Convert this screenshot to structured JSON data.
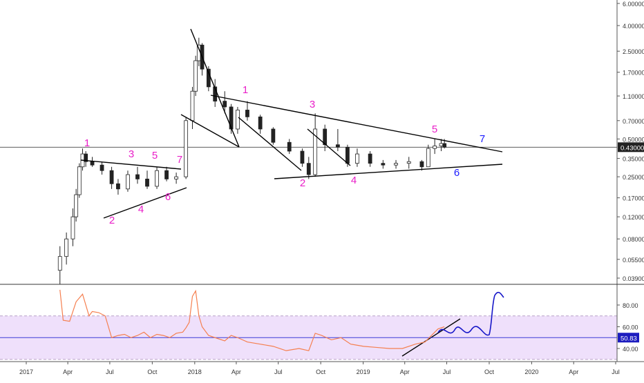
{
  "chart_data": [
    {
      "type": "candlestick",
      "title": "",
      "price_scale": "log",
      "y_ticks": [
        "6.00000",
        "4.00000",
        "2.50000",
        "1.70000",
        "1.10000",
        "0.70000",
        "0.50000",
        "0.35000",
        "0.25000",
        "0.17000",
        "0.12000",
        "0.08000",
        "0.05500",
        "0.03900"
      ],
      "y_tick_values": [
        6.0,
        4.0,
        2.5,
        1.7,
        1.1,
        0.7,
        0.5,
        0.35,
        0.25,
        0.17,
        0.12,
        0.08,
        0.055,
        0.039
      ],
      "x_ticks": [
        "2017",
        "Apr",
        "Jul",
        "Oct",
        "2018",
        "Apr",
        "Jul",
        "Oct",
        "2019",
        "Apr",
        "Jul",
        "Oct",
        "2020",
        "Apr",
        "Jul"
      ],
      "x_tick_dates": [
        "2017-01-01",
        "2017-04-01",
        "2017-07-01",
        "2017-10-01",
        "2018-01-01",
        "2018-04-01",
        "2018-07-01",
        "2018-10-01",
        "2019-01-01",
        "2019-04-01",
        "2019-07-01",
        "2019-10-01",
        "2020-01-01",
        "2020-04-01",
        "2020-07-01"
      ],
      "current_price": 0.43,
      "current_price_label": "0.43000",
      "candles_approx": [
        [
          "2017-03-15",
          0.045,
          0.07,
          0.035,
          0.058
        ],
        [
          "2017-03-29",
          0.058,
          0.09,
          0.05,
          0.08
        ],
        [
          "2017-04-12",
          0.08,
          0.14,
          0.07,
          0.12
        ],
        [
          "2017-04-19",
          0.12,
          0.2,
          0.11,
          0.18
        ],
        [
          "2017-04-26",
          0.18,
          0.32,
          0.17,
          0.3
        ],
        [
          "2017-05-03",
          0.3,
          0.42,
          0.28,
          0.38
        ],
        [
          "2017-05-10",
          0.38,
          0.4,
          0.3,
          0.33
        ],
        [
          "2017-05-24",
          0.33,
          0.36,
          0.3,
          0.31
        ],
        [
          "2017-06-14",
          0.31,
          0.33,
          0.26,
          0.28
        ],
        [
          "2017-07-05",
          0.28,
          0.3,
          0.2,
          0.22
        ],
        [
          "2017-07-19",
          0.22,
          0.24,
          0.18,
          0.2
        ],
        [
          "2017-08-09",
          0.2,
          0.28,
          0.19,
          0.26
        ],
        [
          "2017-08-30",
          0.26,
          0.3,
          0.22,
          0.24
        ],
        [
          "2017-09-20",
          0.24,
          0.28,
          0.2,
          0.21
        ],
        [
          "2017-10-11",
          0.21,
          0.3,
          0.2,
          0.28
        ],
        [
          "2017-11-01",
          0.28,
          0.3,
          0.23,
          0.24
        ],
        [
          "2017-11-22",
          0.24,
          0.27,
          0.22,
          0.25
        ],
        [
          "2017-12-13",
          0.25,
          0.75,
          0.24,
          0.7
        ],
        [
          "2017-12-27",
          0.7,
          1.3,
          0.6,
          1.2
        ],
        [
          "2018-01-03",
          1.2,
          2.3,
          1.1,
          2.1
        ],
        [
          "2018-01-10",
          2.1,
          3.2,
          1.9,
          2.8
        ],
        [
          "2018-01-17",
          2.8,
          2.9,
          1.6,
          1.8
        ],
        [
          "2018-01-31",
          1.8,
          1.9,
          1.2,
          1.3
        ],
        [
          "2018-02-14",
          1.3,
          1.5,
          0.9,
          1.0
        ],
        [
          "2018-03-07",
          1.0,
          1.2,
          0.8,
          0.9
        ],
        [
          "2018-03-21",
          0.9,
          0.95,
          0.55,
          0.6
        ],
        [
          "2018-04-04",
          0.6,
          0.9,
          0.55,
          0.85
        ],
        [
          "2018-04-25",
          0.85,
          1.0,
          0.7,
          0.75
        ],
        [
          "2018-05-23",
          0.75,
          0.78,
          0.55,
          0.6
        ],
        [
          "2018-06-20",
          0.6,
          0.62,
          0.45,
          0.47
        ],
        [
          "2018-07-25",
          0.47,
          0.5,
          0.38,
          0.4
        ],
        [
          "2018-08-22",
          0.4,
          0.42,
          0.3,
          0.32
        ],
        [
          "2018-09-05",
          0.32,
          0.36,
          0.24,
          0.26
        ],
        [
          "2018-09-19",
          0.26,
          0.8,
          0.25,
          0.6
        ],
        [
          "2018-10-10",
          0.6,
          0.65,
          0.4,
          0.45
        ],
        [
          "2018-11-07",
          0.45,
          0.6,
          0.4,
          0.43
        ],
        [
          "2018-11-28",
          0.43,
          0.45,
          0.3,
          0.32
        ],
        [
          "2018-12-19",
          0.32,
          0.42,
          0.3,
          0.38
        ],
        [
          "2019-01-16",
          0.38,
          0.4,
          0.3,
          0.32
        ],
        [
          "2019-02-13",
          0.32,
          0.34,
          0.29,
          0.31
        ],
        [
          "2019-03-13",
          0.31,
          0.34,
          0.29,
          0.32
        ],
        [
          "2019-04-10",
          0.32,
          0.36,
          0.29,
          0.33
        ],
        [
          "2019-05-08",
          0.33,
          0.34,
          0.28,
          0.3
        ],
        [
          "2019-05-22",
          0.3,
          0.45,
          0.3,
          0.42
        ],
        [
          "2019-06-05",
          0.42,
          0.5,
          0.38,
          0.44
        ],
        [
          "2019-06-19",
          0.44,
          0.5,
          0.4,
          0.46
        ],
        [
          "2019-06-26",
          0.46,
          0.5,
          0.42,
          0.43
        ]
      ],
      "pattern_labels": [
        {
          "text": "1",
          "color": "#e91ec8"
        },
        {
          "text": "3",
          "color": "#e91ec8"
        },
        {
          "text": "5",
          "color": "#e91ec8"
        },
        {
          "text": "7",
          "color": "#e91ec8"
        },
        {
          "text": "2",
          "color": "#e91ec8"
        },
        {
          "text": "4",
          "color": "#e91ec8"
        },
        {
          "text": "6",
          "color": "#e91ec8"
        },
        {
          "text": "1",
          "color": "#e91ec8"
        },
        {
          "text": "3",
          "color": "#e91ec8"
        },
        {
          "text": "5",
          "color": "#e91ec8"
        },
        {
          "text": "7",
          "color": "#1a1aff"
        },
        {
          "text": "2",
          "color": "#e91ec8"
        },
        {
          "text": "4",
          "color": "#e91ec8"
        },
        {
          "text": "6",
          "color": "#1a1aff"
        }
      ]
    },
    {
      "type": "line",
      "title": "",
      "y_ticks": [
        "80.00",
        "60.00",
        "40.00"
      ],
      "y_tick_values": [
        80,
        60,
        40
      ],
      "band": [
        30,
        70
      ],
      "mid_line": 50,
      "current_value": 50.83,
      "current_value_label": "50.83",
      "series": [
        {
          "color": "#f57f4f",
          "x": [
            "2017-03-15",
            "2017-03-22",
            "2017-04-05",
            "2017-04-19",
            "2017-05-03",
            "2017-05-17",
            "2017-05-24",
            "2017-06-07",
            "2017-06-21",
            "2017-07-05",
            "2017-07-19",
            "2017-08-02",
            "2017-08-16",
            "2017-08-30",
            "2017-09-13",
            "2017-09-27",
            "2017-10-11",
            "2017-10-25",
            "2017-11-08",
            "2017-11-22",
            "2017-12-06",
            "2017-12-13",
            "2017-12-20",
            "2017-12-27",
            "2018-01-03",
            "2018-01-10",
            "2018-01-17",
            "2018-01-31",
            "2018-02-14",
            "2018-03-07",
            "2018-03-21",
            "2018-04-04",
            "2018-04-25",
            "2018-05-23",
            "2018-06-20",
            "2018-07-18",
            "2018-08-15",
            "2018-09-05",
            "2018-09-19",
            "2018-10-03",
            "2018-10-24",
            "2018-11-14",
            "2018-12-05",
            "2019-01-02",
            "2019-01-30",
            "2019-02-27",
            "2019-03-27",
            "2019-04-24",
            "2019-05-15",
            "2019-05-29",
            "2019-06-12",
            "2019-06-26"
          ],
          "y": [
            94,
            66,
            65,
            83,
            90,
            70,
            74,
            73,
            70,
            50,
            52,
            53,
            50,
            52,
            55,
            50,
            53,
            52,
            50,
            54,
            55,
            59,
            64,
            88,
            93,
            70,
            60,
            52,
            50,
            47,
            52,
            50,
            46,
            44,
            42,
            38,
            40,
            38,
            54,
            52,
            48,
            50,
            44,
            42,
            41,
            40,
            40,
            44,
            46,
            52,
            58,
            60
          ]
        }
      ],
      "trendline_label": ""
    }
  ]
}
